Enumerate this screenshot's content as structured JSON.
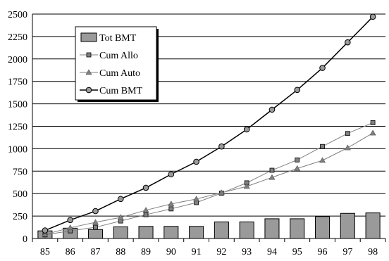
{
  "chart_data": {
    "type": "bar",
    "title": "",
    "xlabel": "",
    "ylabel": "",
    "categories": [
      "85",
      "86",
      "87",
      "88",
      "89",
      "90",
      "91",
      "92",
      "93",
      "94",
      "95",
      "96",
      "97",
      "98"
    ],
    "ylim": [
      0,
      2500
    ],
    "yticks": [
      0,
      250,
      500,
      750,
      1000,
      1250,
      1500,
      1750,
      2000,
      2250,
      2500
    ],
    "ytick_labels": [
      "0",
      "250",
      "500",
      "750",
      "1000",
      "1250",
      "1500",
      "1750",
      "2000",
      "2250",
      "2500"
    ],
    "grid": "horizontal",
    "legend_position": "top-left",
    "series": [
      {
        "name": "Tot BMT",
        "type": "bar",
        "marker": "bar",
        "color": "#9a9a9a",
        "values": [
          85,
          115,
          100,
          130,
          135,
          135,
          135,
          185,
          185,
          220,
          220,
          245,
          280,
          285
        ]
      },
      {
        "name": "Cum Allo",
        "type": "line",
        "marker": "square",
        "color": "#808080",
        "values": [
          40,
          85,
          125,
          195,
          265,
          330,
          400,
          505,
          620,
          760,
          875,
          1025,
          1170,
          1290
        ]
      },
      {
        "name": "Cum Auto",
        "type": "line",
        "marker": "triangle",
        "color": "#808080",
        "values": [
          45,
          120,
          180,
          235,
          315,
          385,
          440,
          510,
          580,
          680,
          780,
          870,
          1010,
          1175
        ]
      },
      {
        "name": "Cum BMT",
        "type": "line",
        "marker": "circle",
        "color": "#000000",
        "values": [
          90,
          205,
          305,
          440,
          565,
          715,
          855,
          1025,
          1215,
          1435,
          1655,
          1900,
          2185,
          2470
        ]
      }
    ]
  }
}
